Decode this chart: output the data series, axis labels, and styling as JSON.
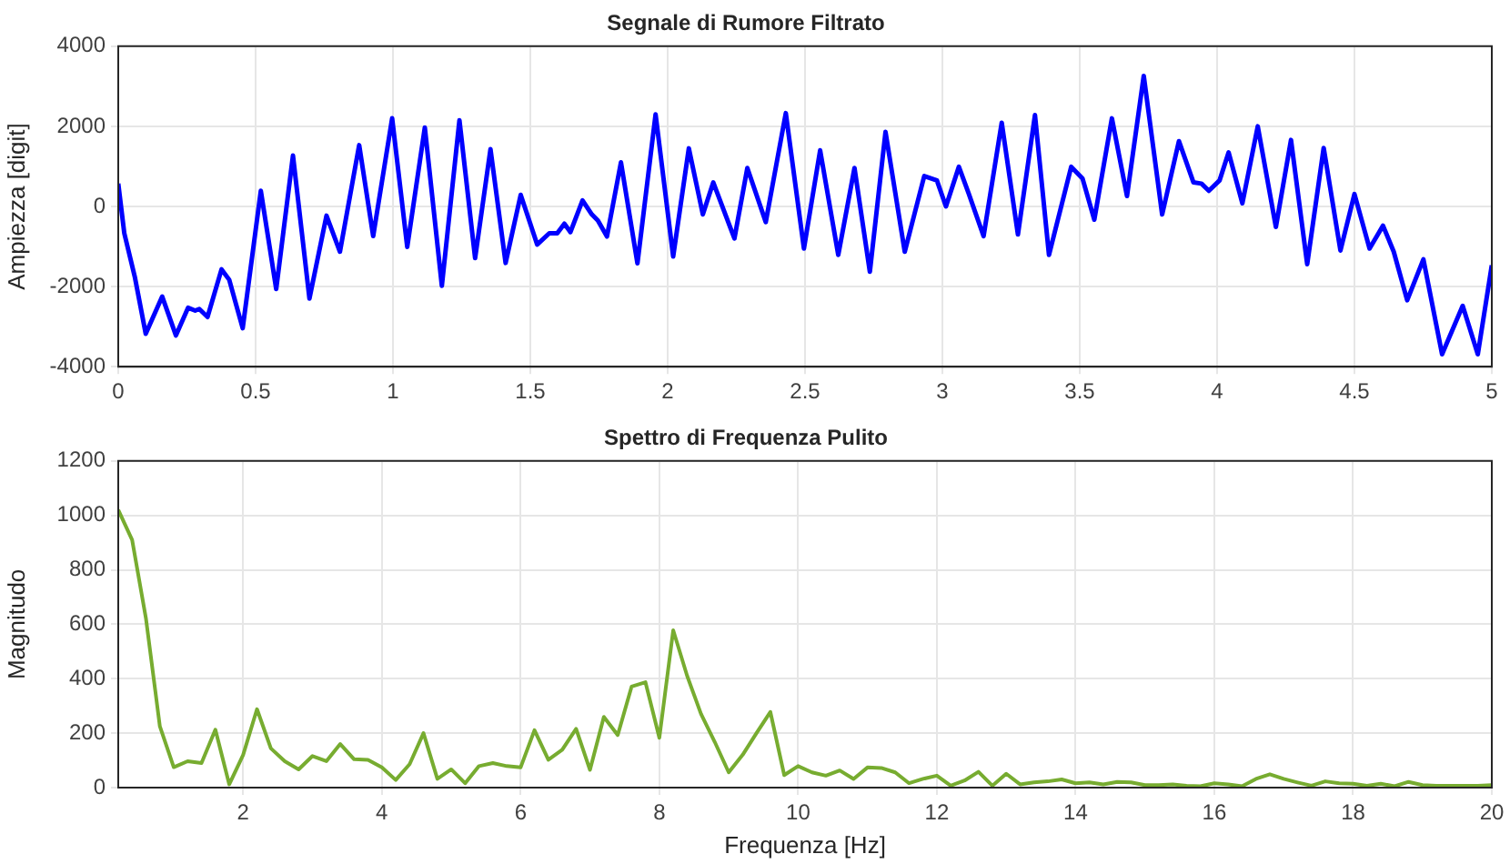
{
  "chart_data": [
    {
      "type": "line",
      "title": "Segnale di Rumore Filtrato",
      "ylabel": "Ampiezza [digit]",
      "color": "#0000ff",
      "grid": true,
      "x": [
        0,
        0.022,
        0.06,
        0.1,
        0.16,
        0.21,
        0.254,
        0.28,
        0.295,
        0.325,
        0.376,
        0.404,
        0.453,
        0.519,
        0.575,
        0.636,
        0.696,
        0.758,
        0.807,
        0.877,
        0.928,
        0.997,
        1.052,
        1.116,
        1.178,
        1.242,
        1.299,
        1.355,
        1.41,
        1.465,
        1.525,
        1.569,
        1.598,
        1.624,
        1.646,
        1.69,
        1.724,
        1.746,
        1.779,
        1.83,
        1.89,
        1.956,
        2.02,
        2.077,
        2.128,
        2.166,
        2.243,
        2.29,
        2.357,
        2.43,
        2.496,
        2.555,
        2.621,
        2.68,
        2.736,
        2.793,
        2.863,
        2.934,
        2.98,
        3.013,
        3.06,
        3.095,
        3.15,
        3.216,
        3.275,
        3.337,
        3.388,
        3.469,
        3.51,
        3.553,
        3.617,
        3.672,
        3.733,
        3.8,
        3.861,
        3.914,
        3.943,
        3.97,
        4.009,
        4.042,
        4.092,
        4.148,
        4.214,
        4.269,
        4.328,
        4.388,
        4.449,
        4.5,
        4.555,
        4.604,
        4.643,
        4.692,
        4.751,
        4.819,
        4.894,
        4.949,
        5
      ],
      "values": [
        570,
        -670,
        -1750,
        -3180,
        -2250,
        -3220,
        -2530,
        -2600,
        -2560,
        -2760,
        -1570,
        -1830,
        -3040,
        390,
        -2060,
        1270,
        -2300,
        -230,
        -1130,
        1530,
        -740,
        2200,
        -1010,
        1970,
        -1980,
        2150,
        -1290,
        1430,
        -1410,
        290,
        -950,
        -670,
        -670,
        -430,
        -640,
        150,
        -200,
        -350,
        -750,
        1100,
        -1420,
        2300,
        -1250,
        1450,
        -200,
        600,
        -800,
        960,
        -390,
        2330,
        -1050,
        1400,
        -1210,
        960,
        -1630,
        1860,
        -1130,
        760,
        650,
        0,
        990,
        340,
        -740,
        2090,
        -700,
        2280,
        -1210,
        990,
        700,
        -330,
        2200,
        260,
        3260,
        -200,
        1630,
        600,
        570,
        390,
        650,
        1350,
        80,
        2000,
        -510,
        1660,
        -1440,
        1460,
        -1100,
        310,
        -1050,
        -480,
        -1130,
        -2340,
        -1320,
        -3690,
        -2480,
        -3690,
        -1470
      ],
      "xlim": [
        0,
        5
      ],
      "xticks": [
        0,
        0.5,
        1,
        1.5,
        2,
        2.5,
        3,
        3.5,
        4,
        4.5,
        5
      ],
      "ylim": [
        -4000,
        4000
      ],
      "yticks": [
        -4000,
        -2000,
        0,
        2000,
        4000
      ]
    },
    {
      "type": "line",
      "title": "Spettro di Frequenza Pulito",
      "xlabel": "Frequenza [Hz]",
      "ylabel": "Magnitudo",
      "color": "#77ac30",
      "grid": true,
      "x": [
        0.2,
        0.4,
        0.6,
        0.8,
        1,
        1.2,
        1.4,
        1.6,
        1.8,
        2,
        2.2,
        2.4,
        2.6,
        2.8,
        3,
        3.2,
        3.4,
        3.6,
        3.8,
        4,
        4.2,
        4.4,
        4.6,
        4.8,
        5,
        5.2,
        5.4,
        5.6,
        5.8,
        6,
        6.2,
        6.4,
        6.6,
        6.8,
        7,
        7.2,
        7.4,
        7.6,
        7.8,
        8,
        8.2,
        8.4,
        8.6,
        8.8,
        9,
        9.2,
        9.4,
        9.6,
        9.8,
        10,
        10.2,
        10.4,
        10.6,
        10.8,
        11,
        11.2,
        11.4,
        11.6,
        11.8,
        12,
        12.2,
        12.4,
        12.6,
        12.8,
        13,
        13.2,
        13.4,
        13.6,
        13.8,
        14,
        14.2,
        14.4,
        14.6,
        14.8,
        15,
        15.2,
        15.4,
        15.6,
        15.8,
        16,
        16.2,
        16.4,
        16.6,
        16.8,
        17,
        17.2,
        17.4,
        17.6,
        17.8,
        18,
        18.2,
        18.4,
        18.6,
        18.8,
        19,
        19.2,
        19.4,
        19.6,
        19.8,
        20
      ],
      "values": [
        1020,
        910,
        620,
        225,
        75,
        97,
        90,
        213,
        12,
        120,
        288,
        144,
        97,
        67,
        116,
        97,
        160,
        104,
        102,
        74,
        28,
        86,
        200,
        32,
        67,
        16,
        79,
        90,
        79,
        74,
        211,
        102,
        139,
        216,
        65,
        260,
        193,
        371,
        387,
        183,
        578,
        411,
        271,
        167,
        56,
        120,
        200,
        278,
        46,
        79,
        56,
        44,
        63,
        32,
        74,
        72,
        56,
        16,
        32,
        44,
        7,
        26,
        58,
        7,
        51,
        12,
        19,
        23,
        30,
        16,
        19,
        12,
        21,
        19,
        9,
        9,
        12,
        7,
        5,
        16,
        12,
        5,
        32,
        49,
        32,
        19,
        7,
        23,
        16,
        14,
        7,
        14,
        5,
        21,
        9,
        7,
        7,
        7,
        7,
        9
      ],
      "xlim": [
        0.2,
        20
      ],
      "xticks": [
        2,
        4,
        6,
        8,
        10,
        12,
        14,
        16,
        18,
        20
      ],
      "ylim": [
        0,
        1200
      ],
      "yticks": [
        0,
        200,
        400,
        600,
        800,
        1000,
        1200
      ]
    }
  ]
}
